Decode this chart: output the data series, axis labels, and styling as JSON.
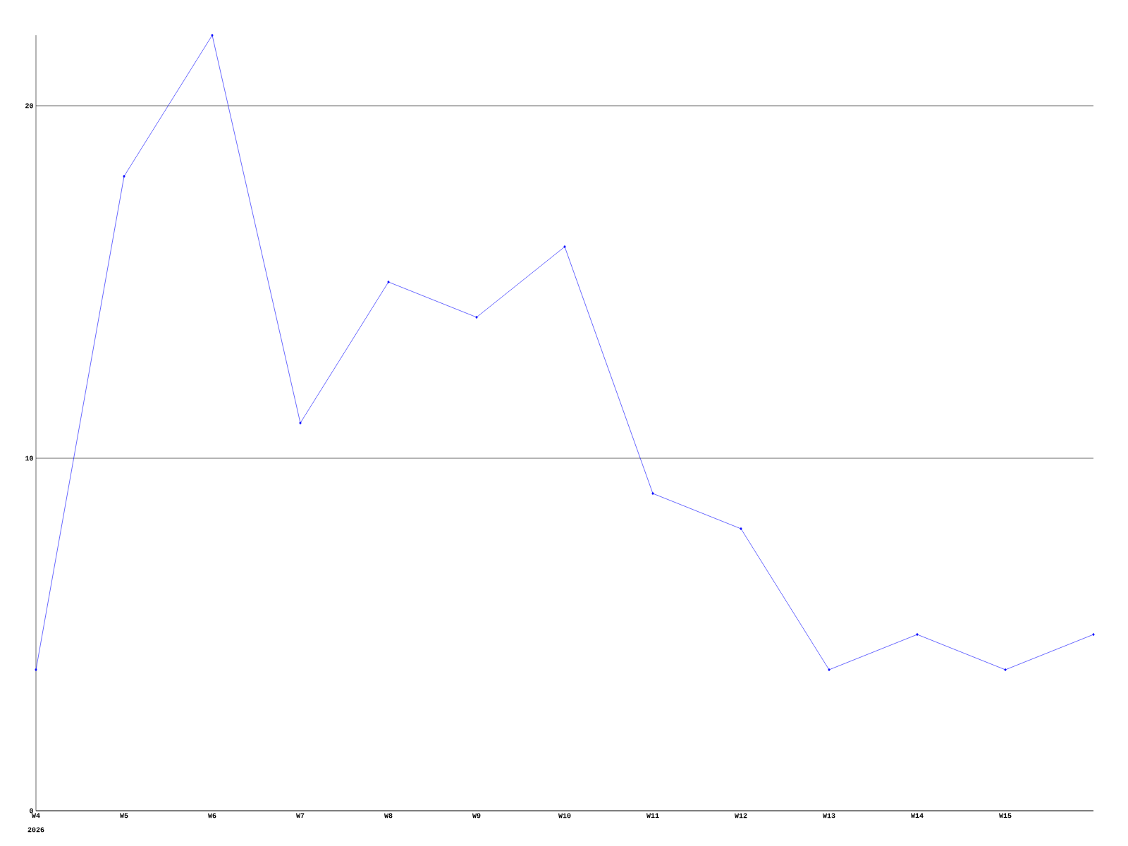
{
  "chart_data": {
    "type": "line",
    "categories": [
      "W4",
      "W5",
      "W6",
      "W7",
      "W8",
      "W9",
      "W10",
      "W11",
      "W12",
      "W13",
      "W14",
      "W15",
      null
    ],
    "series": [
      {
        "color": "#0000ff",
        "values": [
          4,
          18,
          22,
          11,
          15,
          14,
          16,
          9,
          8,
          4,
          5,
          4,
          5
        ]
      }
    ],
    "ylim": [
      0,
      22
    ],
    "yticks": [
      0,
      10,
      20
    ],
    "grid": "y",
    "marker": "diamond",
    "line_style": "solid",
    "annotations": [
      "2026"
    ]
  }
}
